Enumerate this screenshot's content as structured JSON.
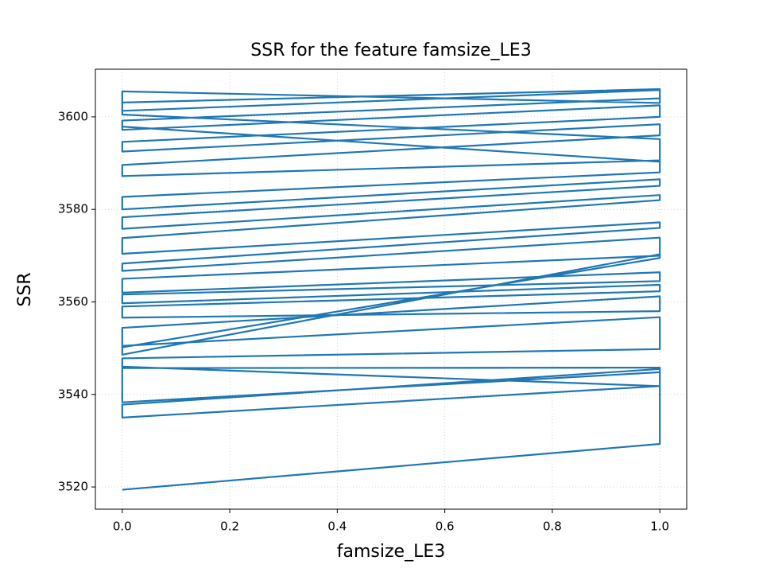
{
  "chart_data": {
    "type": "line",
    "title": "SSR for the feature famsize_LE3",
    "x_label": "famsize_LE3",
    "y_label": "SSR",
    "x": [
      0,
      1,
      1,
      0,
      0,
      1,
      1,
      0,
      0,
      1,
      1,
      0,
      0,
      1,
      1,
      0,
      0,
      1,
      1,
      0,
      0,
      1,
      1,
      0,
      0,
      1,
      1,
      0,
      0,
      1,
      1,
      0,
      0,
      1,
      1,
      0,
      0,
      1,
      1,
      0,
      0,
      1,
      1,
      0,
      0,
      1,
      1,
      0,
      0,
      1,
      1,
      0,
      0,
      1,
      1,
      0,
      0,
      1,
      1,
      0,
      0,
      1,
      1,
      0,
      0,
      1,
      1,
      0,
      0,
      1,
      1,
      0
    ],
    "series": [
      {
        "color": "#1f77b4",
        "values": [
          3519.4,
          3529.3,
          3541.8,
          3535.0,
          3537.8,
          3545.5,
          3544.8,
          3538.3,
          3546.0,
          3541.8,
          3545.8,
          3545.7,
          3547.8,
          3549.8,
          3556.7,
          3550.5,
          3548.6,
          3570.3,
          3569.5,
          3550.2,
          3554.4,
          3561.2,
          3558.0,
          3556.6,
          3559.0,
          3562.3,
          3563.7,
          3559.7,
          3561.6,
          3564.5,
          3566.4,
          3562.0,
          3565.0,
          3570.0,
          3573.9,
          3566.7,
          3568.3,
          3576.0,
          3577.2,
          3570.4,
          3573.8,
          3582.0,
          3583.1,
          3575.8,
          3578.3,
          3585.1,
          3586.5,
          3580.0,
          3582.7,
          3588.0,
          3590.6,
          3587.2,
          3589.6,
          3596.0,
          3598.4,
          3592.5,
          3594.6,
          3600.0,
          3602.5,
          3597.2,
          3599.2,
          3604.0,
          3605.8,
          3601.3,
          3603.1,
          3606.0,
          3603.0,
          3605.5,
          3600.5,
          3595.2,
          3590.3,
          3597.9
        ]
      }
    ],
    "xlim": [
      -0.05,
      1.05
    ],
    "ylim": [
      3515.2,
      3610.3
    ],
    "xticks": [
      {
        "value": 0,
        "label": "0.0"
      },
      0.2,
      0.4,
      0.6,
      0.8,
      {
        "value": 1,
        "label": "1.0"
      }
    ],
    "yticks": [
      3520,
      3540,
      3560,
      3580,
      3600
    ],
    "grid": true
  }
}
